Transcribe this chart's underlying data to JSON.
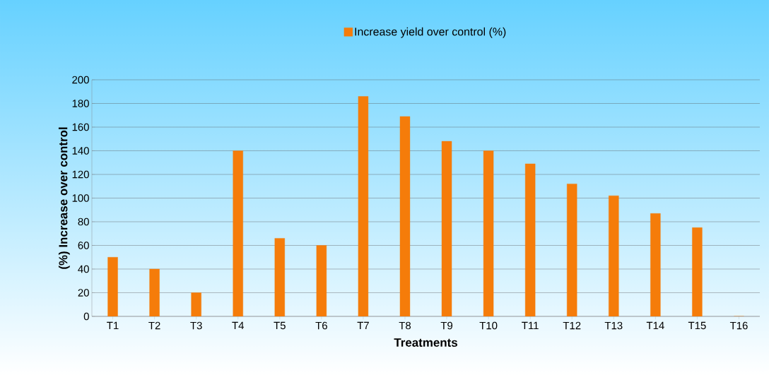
{
  "chart_data": {
    "type": "bar",
    "xlabel": "Treatments",
    "ylabel": "(%) Increase over control",
    "categories": [
      "T1",
      "T2",
      "T3",
      "T4",
      "T5",
      "T6",
      "T7",
      "T8",
      "T9",
      "T10",
      "T11",
      "T12",
      "T13",
      "T14",
      "T15",
      "T16"
    ],
    "series": [
      {
        "name": "Increase yield over control (%)",
        "color": "#f57c0a",
        "values": [
          50,
          40,
          20,
          140,
          66,
          60,
          186,
          169,
          148,
          140,
          129,
          112,
          102,
          87,
          75,
          0
        ]
      }
    ],
    "ylim": [
      0,
      200
    ],
    "yticks": [
      0,
      20,
      40,
      60,
      80,
      100,
      120,
      140,
      160,
      180,
      200
    ],
    "grid": "y",
    "legend": "top"
  }
}
